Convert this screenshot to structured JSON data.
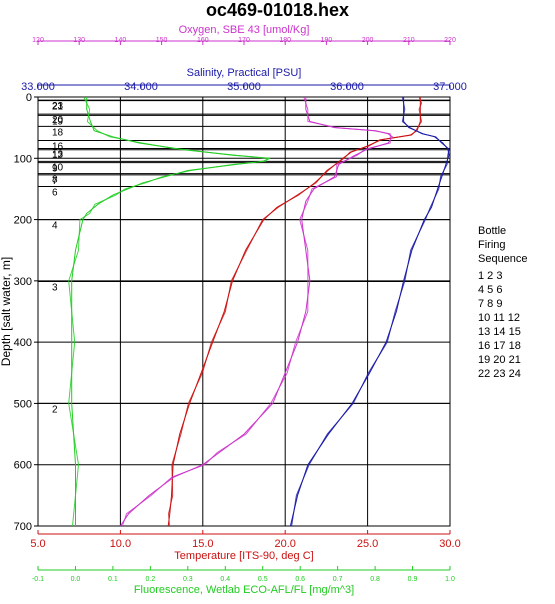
{
  "chart_data": {
    "type": "line",
    "title": "oc469-01018.hex",
    "y_axis": {
      "label": "Depth [salt water, m]",
      "range": [
        0,
        700
      ],
      "ticks": [
        "0",
        "100",
        "200",
        "300",
        "400",
        "500",
        "600",
        "700"
      ],
      "inverted": true
    },
    "x_axes": [
      {
        "key": "oxygen",
        "label": "Oxygen, SBE 43 [umol/Kg]",
        "position": "top",
        "color": "#cc33cc",
        "range": [
          120,
          220
        ],
        "ticks": [
          "120",
          "130",
          "140",
          "150",
          "160",
          "170",
          "180",
          "190",
          "200",
          "210",
          "220"
        ]
      },
      {
        "key": "salinity",
        "label": "Salinity, Practical [PSU]",
        "position": "top",
        "color": "#1a1aa8",
        "range": [
          33,
          37
        ],
        "ticks": [
          "33.000",
          "34.000",
          "35.000",
          "36.000",
          "37.000"
        ]
      },
      {
        "key": "temperature",
        "label": "Temperature [ITS-90, deg C]",
        "position": "bottom",
        "color": "#cc1111",
        "range": [
          5,
          30
        ],
        "ticks": [
          "5.0",
          "10.0",
          "15.0",
          "20.0",
          "25.0",
          "30.0"
        ]
      },
      {
        "key": "fluorescence",
        "label": "Fluorescence, Wetlab ECO-AFL/FL [mg/m^3]",
        "position": "bottom",
        "color": "#22cc22",
        "range": [
          -0.1,
          1.0
        ],
        "ticks": [
          "-0.1",
          "0.0",
          "0.1",
          "0.2",
          "0.3",
          "0.4",
          "0.5",
          "0.6",
          "0.7",
          "0.8",
          "0.9",
          "1.0"
        ]
      }
    ],
    "series": [
      {
        "name": "Temperature",
        "axis": "temperature",
        "color": "#cc1111",
        "depth": [
          0,
          10,
          20,
          40,
          55,
          62,
          70,
          80,
          90,
          100,
          120,
          140,
          160,
          180,
          200,
          250,
          300,
          350,
          400,
          450,
          500,
          550,
          600,
          650,
          680,
          700
        ],
        "values": [
          28.2,
          28.2,
          28.2,
          28.2,
          28.0,
          27.6,
          25.8,
          25.0,
          24.0,
          23.5,
          22.6,
          21.8,
          20.8,
          19.5,
          18.7,
          17.6,
          16.8,
          16.3,
          15.6,
          14.9,
          14.2,
          13.6,
          13.2,
          13.1,
          13.0,
          12.9
        ]
      },
      {
        "name": "Salinity",
        "axis": "salinity",
        "color": "#1a1aa8",
        "depth": [
          0,
          20,
          40,
          50,
          60,
          65,
          75,
          85,
          95,
          110,
          130,
          150,
          180,
          200,
          250,
          300,
          350,
          400,
          450,
          500,
          550,
          600,
          650,
          700
        ],
        "values": [
          36.55,
          36.55,
          36.55,
          36.6,
          36.74,
          36.85,
          36.93,
          36.98,
          36.99,
          36.96,
          36.92,
          36.88,
          36.82,
          36.75,
          36.63,
          36.55,
          36.48,
          36.38,
          36.22,
          36.05,
          35.82,
          35.62,
          35.52,
          35.45
        ]
      },
      {
        "name": "Oxygen",
        "axis": "oxygen",
        "color": "#cc33cc",
        "depth": [
          0,
          20,
          40,
          50,
          55,
          60,
          65,
          75,
          85,
          95,
          110,
          130,
          150,
          170,
          200,
          250,
          300,
          350,
          400,
          450,
          500,
          550,
          580,
          600,
          620,
          650,
          680,
          700
        ],
        "values": [
          185,
          185,
          186,
          192,
          202,
          205,
          206,
          205,
          200,
          197,
          193,
          192,
          187,
          185,
          184,
          185,
          186,
          185,
          183,
          180,
          177,
          170,
          164,
          160,
          153,
          147,
          142,
          140
        ]
      },
      {
        "name": "Fluorescence",
        "axis": "fluorescence",
        "color": "#22cc22",
        "depth": [
          0,
          20,
          40,
          55,
          65,
          75,
          85,
          95,
          100,
          105,
          110,
          120,
          130,
          140,
          150,
          160,
          175,
          190,
          200,
          250,
          300,
          400,
          500,
          600,
          700
        ],
        "values": [
          0.03,
          0.03,
          0.04,
          0.05,
          0.1,
          0.17,
          0.28,
          0.42,
          0.52,
          0.5,
          0.43,
          0.3,
          0.24,
          0.18,
          0.14,
          0.1,
          0.06,
          0.03,
          0.02,
          0.0,
          -0.01,
          -0.01,
          -0.01,
          0.0,
          0.0
        ]
      }
    ],
    "bottle_firings": [
      {
        "label": "23",
        "depth": 5
      },
      {
        "label": "21",
        "depth": 6
      },
      {
        "label": "20",
        "depth": 28
      },
      {
        "label": "19",
        "depth": 30
      },
      {
        "label": "18",
        "depth": 48
      },
      {
        "label": "16",
        "depth": 71
      },
      {
        "label": "13",
        "depth": 84
      },
      {
        "label": "12",
        "depth": 86
      },
      {
        "label": "10",
        "depth": 105
      },
      {
        "label": "9",
        "depth": 107
      },
      {
        "label": "8",
        "depth": 125
      },
      {
        "label": "7",
        "depth": 127
      },
      {
        "label": "6",
        "depth": 146
      },
      {
        "label": "4",
        "depth": 200
      },
      {
        "label": "3",
        "depth": 301
      },
      {
        "label": "2",
        "depth": 500
      }
    ],
    "legend": {
      "title_lines": [
        "Bottle",
        "Firing",
        "Sequence"
      ],
      "rows": [
        "1  2  3",
        "4  5  6",
        "7  8  9",
        "10 11 12",
        "13 14 15",
        "16 17 18",
        "19 20 21",
        "22 23 24"
      ]
    },
    "grid": true
  }
}
